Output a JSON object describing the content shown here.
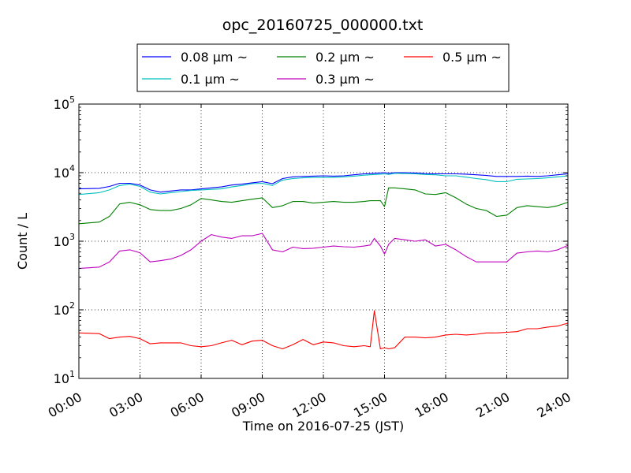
{
  "chart_data": {
    "type": "line",
    "title": "opc_20160725_000000.txt",
    "xlabel": "Time on 2016-07-25 (JST)",
    "ylabel": "Count / L",
    "yscale": "log",
    "ylim": [
      10,
      100000
    ],
    "xlim_hours": [
      0,
      24
    ],
    "grid": true,
    "legend_position": "top, outside plot",
    "x_tick_labels": [
      "00:00",
      "03:00",
      "06:00",
      "09:00",
      "12:00",
      "15:00",
      "18:00",
      "21:00",
      "24:00"
    ],
    "y_tick_labels": [
      {
        "base": "10",
        "exp": "1"
      },
      {
        "base": "10",
        "exp": "2"
      },
      {
        "base": "10",
        "exp": "3"
      },
      {
        "base": "10",
        "exp": "4"
      },
      {
        "base": "10",
        "exp": "5"
      }
    ],
    "x_hours": [
      0,
      1,
      1.5,
      2,
      2.5,
      3,
      3.5,
      4,
      4.5,
      5,
      5.5,
      6,
      6.5,
      7,
      7.5,
      8,
      8.5,
      9,
      9.5,
      10,
      10.5,
      11,
      11.5,
      12,
      12.5,
      13,
      13.5,
      14,
      14.3,
      14.5,
      14.8,
      15,
      15.2,
      15.5,
      16,
      16.5,
      17,
      17.5,
      18,
      18.5,
      19,
      19.5,
      20,
      20.5,
      21,
      21.5,
      22,
      22.5,
      23,
      23.5,
      24
    ],
    "series": [
      {
        "name": "0.08 μm ~",
        "color": "#0000ff",
        "values": [
          5800,
          5900,
          6300,
          7000,
          7000,
          6600,
          5600,
          5200,
          5400,
          5600,
          5600,
          5800,
          6000,
          6200,
          6600,
          6800,
          7100,
          7400,
          6900,
          8200,
          8700,
          8800,
          8900,
          9000,
          8900,
          9000,
          9300,
          9600,
          9700,
          9800,
          9900,
          10000,
          9800,
          10000,
          10000,
          9900,
          9700,
          9600,
          9600,
          9600,
          9500,
          9300,
          9100,
          8800,
          8800,
          8800,
          8900,
          8800,
          9000,
          9300,
          9600
        ]
      },
      {
        "name": "0.1 μm ~",
        "color": "#00bfbf",
        "values": [
          4800,
          5100,
          5600,
          6500,
          6800,
          6300,
          5200,
          4900,
          5100,
          5300,
          5500,
          5600,
          5700,
          5800,
          6200,
          6500,
          6900,
          7000,
          6500,
          7800,
          8200,
          8400,
          8500,
          8500,
          8500,
          8700,
          8900,
          9200,
          9300,
          9400,
          9500,
          9600,
          9400,
          9800,
          9700,
          9600,
          9400,
          9300,
          9000,
          9000,
          8600,
          8200,
          7900,
          7400,
          7400,
          8000,
          8100,
          8200,
          8400,
          8700,
          9000
        ]
      },
      {
        "name": "0.2 μm ~",
        "color": "#008000",
        "values": [
          1800,
          1900,
          2300,
          3500,
          3700,
          3400,
          2900,
          2800,
          2800,
          3000,
          3400,
          4200,
          4000,
          3800,
          3700,
          3900,
          4100,
          4300,
          3100,
          3300,
          3800,
          3800,
          3600,
          3700,
          3800,
          3700,
          3700,
          3800,
          3900,
          3900,
          3900,
          3200,
          6000,
          6000,
          5800,
          5600,
          4900,
          4800,
          5100,
          4300,
          3500,
          3000,
          2800,
          2300,
          2400,
          3100,
          3300,
          3200,
          3100,
          3300,
          3700
        ]
      },
      {
        "name": "0.3 μm ~",
        "color": "#bf00bf",
        "values": [
          400,
          420,
          500,
          720,
          750,
          680,
          500,
          520,
          550,
          620,
          750,
          1000,
          1250,
          1150,
          1100,
          1200,
          1200,
          1300,
          750,
          700,
          820,
          780,
          790,
          820,
          850,
          830,
          820,
          850,
          880,
          1100,
          850,
          650,
          900,
          1100,
          1050,
          1000,
          1050,
          850,
          900,
          750,
          600,
          500,
          500,
          500,
          500,
          670,
          700,
          720,
          700,
          750,
          870
        ]
      },
      {
        "name": "0.5 μm ~",
        "color": "#ff0000",
        "values": [
          46,
          45,
          38,
          40,
          41,
          38,
          32,
          33,
          33,
          33,
          30,
          29,
          30,
          33,
          36,
          31,
          35,
          36,
          30,
          27,
          31,
          37,
          31,
          34,
          33,
          30,
          29,
          30,
          29,
          97,
          27,
          28,
          27,
          28,
          40,
          40,
          39,
          40,
          43,
          44,
          43,
          44,
          46,
          46,
          47,
          48,
          53,
          53,
          56,
          58,
          64
        ]
      }
    ]
  }
}
